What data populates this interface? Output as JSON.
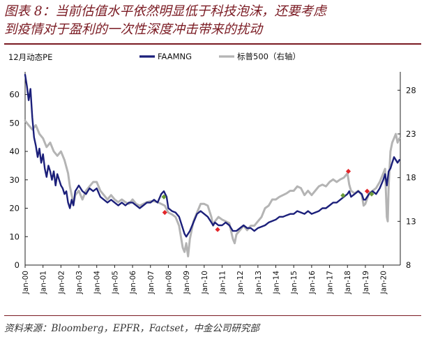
{
  "figure": {
    "title_line1": "图表 8：当前估值水平依然明显低于科技泡沫，还要考虑",
    "title_line2": "到疫情对于盈利的一次性深度冲击带来的扰动",
    "source": "资料来源：Bloomberg，EPFR，Factset，中金公司研究部"
  },
  "chart_data": {
    "type": "line",
    "y_unit_label": "12月动态PE",
    "left_axis": {
      "ylim": [
        0,
        68
      ],
      "ticks": [
        0,
        10,
        20,
        30,
        40,
        50,
        60
      ]
    },
    "right_axis": {
      "ylim": [
        8,
        30.1
      ],
      "ticks": [
        8,
        13,
        18,
        23,
        28
      ]
    },
    "x_axis": {
      "xlim": [
        2000.0,
        2020.95
      ],
      "ticks": [
        "Jan-00",
        "Jan-01",
        "Jan-02",
        "Jan-03",
        "Jan-04",
        "Jan-05",
        "Jan-06",
        "Jan-07",
        "Jan-08",
        "Jan-09",
        "Jan-10",
        "Jan-11",
        "Jan-12",
        "Jan-13",
        "Jan-14",
        "Jan-15",
        "Jan-16",
        "Jan-17",
        "Jan-18",
        "Jan-19",
        "Jan-20"
      ]
    },
    "legend": {
      "placement": "top-center"
    },
    "grid": false,
    "series": [
      {
        "name": "FAAMNG",
        "axis": "left",
        "color": "#1b1f7a",
        "points": [
          [
            2000.0,
            67
          ],
          [
            2000.1,
            63
          ],
          [
            2000.2,
            58
          ],
          [
            2000.3,
            62
          ],
          [
            2000.4,
            52
          ],
          [
            2000.5,
            45
          ],
          [
            2000.6,
            42
          ],
          [
            2000.7,
            38
          ],
          [
            2000.8,
            41
          ],
          [
            2000.9,
            36
          ],
          [
            2001.0,
            39
          ],
          [
            2001.1,
            34
          ],
          [
            2001.2,
            31
          ],
          [
            2001.3,
            35
          ],
          [
            2001.4,
            33
          ],
          [
            2001.5,
            30
          ],
          [
            2001.6,
            33
          ],
          [
            2001.7,
            28
          ],
          [
            2001.8,
            32
          ],
          [
            2001.9,
            30
          ],
          [
            2002.0,
            28
          ],
          [
            2002.1,
            27
          ],
          [
            2002.2,
            25
          ],
          [
            2002.3,
            26
          ],
          [
            2002.4,
            22
          ],
          [
            2002.5,
            20
          ],
          [
            2002.6,
            23
          ],
          [
            2002.7,
            21
          ],
          [
            2002.8,
            26
          ],
          [
            2002.9,
            27
          ],
          [
            2003.0,
            28
          ],
          [
            2003.2,
            26
          ],
          [
            2003.4,
            25
          ],
          [
            2003.6,
            27
          ],
          [
            2003.8,
            26
          ],
          [
            2004.0,
            27
          ],
          [
            2004.2,
            24
          ],
          [
            2004.4,
            23
          ],
          [
            2004.6,
            22
          ],
          [
            2004.8,
            23
          ],
          [
            2005.0,
            22
          ],
          [
            2005.2,
            21
          ],
          [
            2005.4,
            22
          ],
          [
            2005.6,
            21
          ],
          [
            2005.8,
            22
          ],
          [
            2006.0,
            22
          ],
          [
            2006.2,
            21
          ],
          [
            2006.4,
            20
          ],
          [
            2006.6,
            21
          ],
          [
            2006.8,
            22
          ],
          [
            2007.0,
            22
          ],
          [
            2007.2,
            23
          ],
          [
            2007.4,
            22
          ],
          [
            2007.6,
            25
          ],
          [
            2007.75,
            26
          ],
          [
            2007.9,
            24
          ],
          [
            2008.0,
            20
          ],
          [
            2008.2,
            19
          ],
          [
            2008.4,
            18.5
          ],
          [
            2008.6,
            17
          ],
          [
            2008.8,
            13
          ],
          [
            2008.9,
            11
          ],
          [
            2009.0,
            10
          ],
          [
            2009.2,
            12
          ],
          [
            2009.4,
            15
          ],
          [
            2009.6,
            18
          ],
          [
            2009.8,
            19
          ],
          [
            2010.0,
            18
          ],
          [
            2010.2,
            17
          ],
          [
            2010.4,
            15
          ],
          [
            2010.5,
            14
          ],
          [
            2010.6,
            15
          ],
          [
            2010.8,
            14
          ],
          [
            2011.0,
            14
          ],
          [
            2011.2,
            15
          ],
          [
            2011.4,
            14
          ],
          [
            2011.6,
            12
          ],
          [
            2011.8,
            12
          ],
          [
            2012.0,
            13
          ],
          [
            2012.2,
            14
          ],
          [
            2012.4,
            13
          ],
          [
            2012.6,
            13
          ],
          [
            2012.8,
            12
          ],
          [
            2013.0,
            13
          ],
          [
            2013.2,
            13.5
          ],
          [
            2013.4,
            14
          ],
          [
            2013.6,
            15
          ],
          [
            2013.8,
            15.5
          ],
          [
            2014.0,
            16
          ],
          [
            2014.2,
            17
          ],
          [
            2014.4,
            17
          ],
          [
            2014.6,
            17.5
          ],
          [
            2014.8,
            18
          ],
          [
            2015.0,
            18
          ],
          [
            2015.2,
            19
          ],
          [
            2015.4,
            18.5
          ],
          [
            2015.6,
            18
          ],
          [
            2015.8,
            19
          ],
          [
            2016.0,
            18
          ],
          [
            2016.2,
            18.5
          ],
          [
            2016.4,
            19
          ],
          [
            2016.6,
            20
          ],
          [
            2016.8,
            20
          ],
          [
            2017.0,
            21
          ],
          [
            2017.2,
            22
          ],
          [
            2017.4,
            22
          ],
          [
            2017.6,
            23
          ],
          [
            2017.8,
            24
          ],
          [
            2018.0,
            25
          ],
          [
            2018.1,
            26
          ],
          [
            2018.2,
            24
          ],
          [
            2018.4,
            25
          ],
          [
            2018.6,
            26
          ],
          [
            2018.8,
            25
          ],
          [
            2018.9,
            23
          ],
          [
            2019.0,
            23
          ],
          [
            2019.2,
            25
          ],
          [
            2019.4,
            26
          ],
          [
            2019.6,
            25
          ],
          [
            2019.8,
            27
          ],
          [
            2020.0,
            30
          ],
          [
            2020.1,
            32
          ],
          [
            2020.2,
            28
          ],
          [
            2020.3,
            33
          ],
          [
            2020.4,
            34
          ],
          [
            2020.5,
            36
          ],
          [
            2020.6,
            38
          ],
          [
            2020.7,
            37
          ],
          [
            2020.8,
            36
          ],
          [
            2020.9,
            37
          ]
        ]
      },
      {
        "name": "标普500（右轴）",
        "axis": "right",
        "color": "#b4b4b4",
        "points": [
          [
            2000.0,
            24.5
          ],
          [
            2000.2,
            24
          ],
          [
            2000.4,
            23.5
          ],
          [
            2000.6,
            24
          ],
          [
            2000.8,
            23
          ],
          [
            2001.0,
            22.5
          ],
          [
            2001.2,
            21.5
          ],
          [
            2001.4,
            22
          ],
          [
            2001.6,
            21
          ],
          [
            2001.8,
            20.5
          ],
          [
            2002.0,
            21
          ],
          [
            2002.2,
            20
          ],
          [
            2002.4,
            18.5
          ],
          [
            2002.5,
            17
          ],
          [
            2002.6,
            16
          ],
          [
            2002.7,
            15
          ],
          [
            2002.8,
            16
          ],
          [
            2003.0,
            16.5
          ],
          [
            2003.2,
            15.5
          ],
          [
            2003.4,
            16.5
          ],
          [
            2003.6,
            17
          ],
          [
            2003.8,
            17.5
          ],
          [
            2004.0,
            17.5
          ],
          [
            2004.2,
            16.5
          ],
          [
            2004.4,
            16
          ],
          [
            2004.6,
            15.5
          ],
          [
            2004.8,
            16
          ],
          [
            2005.0,
            15.5
          ],
          [
            2005.2,
            15.2
          ],
          [
            2005.4,
            15.5
          ],
          [
            2005.6,
            15.2
          ],
          [
            2005.8,
            15
          ],
          [
            2006.0,
            15.5
          ],
          [
            2006.2,
            15
          ],
          [
            2006.4,
            14.8
          ],
          [
            2006.6,
            15
          ],
          [
            2006.8,
            15.2
          ],
          [
            2007.0,
            15.3
          ],
          [
            2007.2,
            15.3
          ],
          [
            2007.4,
            15.2
          ],
          [
            2007.6,
            15
          ],
          [
            2007.8,
            14.8
          ],
          [
            2008.0,
            14
          ],
          [
            2008.2,
            13.8
          ],
          [
            2008.4,
            13.5
          ],
          [
            2008.6,
            12.5
          ],
          [
            2008.8,
            10
          ],
          [
            2008.9,
            9.5
          ],
          [
            2009.0,
            10.5
          ],
          [
            2009.1,
            9
          ],
          [
            2009.2,
            11
          ],
          [
            2009.4,
            13
          ],
          [
            2009.6,
            14
          ],
          [
            2009.8,
            15
          ],
          [
            2010.0,
            15
          ],
          [
            2010.2,
            14.8
          ],
          [
            2010.4,
            13.5
          ],
          [
            2010.5,
            12.5
          ],
          [
            2010.6,
            13
          ],
          [
            2010.8,
            13.5
          ],
          [
            2011.0,
            13.2
          ],
          [
            2011.2,
            13
          ],
          [
            2011.4,
            12.8
          ],
          [
            2011.6,
            11
          ],
          [
            2011.7,
            10.5
          ],
          [
            2011.8,
            11.5
          ],
          [
            2012.0,
            12
          ],
          [
            2012.2,
            12.5
          ],
          [
            2012.4,
            12
          ],
          [
            2012.6,
            12.5
          ],
          [
            2012.8,
            12.5
          ],
          [
            2013.0,
            13
          ],
          [
            2013.2,
            13.5
          ],
          [
            2013.4,
            14.5
          ],
          [
            2013.6,
            14.8
          ],
          [
            2013.8,
            15.5
          ],
          [
            2014.0,
            15.5
          ],
          [
            2014.2,
            15.8
          ],
          [
            2014.4,
            16
          ],
          [
            2014.6,
            16.2
          ],
          [
            2014.8,
            16.5
          ],
          [
            2015.0,
            16.5
          ],
          [
            2015.2,
            17
          ],
          [
            2015.4,
            16.8
          ],
          [
            2015.6,
            16
          ],
          [
            2015.8,
            16.5
          ],
          [
            2016.0,
            16
          ],
          [
            2016.2,
            16.5
          ],
          [
            2016.4,
            17
          ],
          [
            2016.6,
            17.2
          ],
          [
            2016.8,
            17
          ],
          [
            2017.0,
            17.5
          ],
          [
            2017.2,
            17.8
          ],
          [
            2017.4,
            17.5
          ],
          [
            2017.6,
            17.8
          ],
          [
            2017.8,
            18
          ],
          [
            2018.0,
            18.5
          ],
          [
            2018.1,
            17.2
          ],
          [
            2018.2,
            16.5
          ],
          [
            2018.4,
            16.2
          ],
          [
            2018.6,
            16.5
          ],
          [
            2018.8,
            16
          ],
          [
            2018.9,
            14.8
          ],
          [
            2019.0,
            15
          ],
          [
            2019.2,
            16.2
          ],
          [
            2019.4,
            16.5
          ],
          [
            2019.6,
            16.8
          ],
          [
            2019.8,
            17.5
          ],
          [
            2020.0,
            18.5
          ],
          [
            2020.1,
            19
          ],
          [
            2020.2,
            13.5
          ],
          [
            2020.25,
            13
          ],
          [
            2020.3,
            17
          ],
          [
            2020.4,
            21
          ],
          [
            2020.5,
            22
          ],
          [
            2020.6,
            22.5
          ],
          [
            2020.7,
            23
          ],
          [
            2020.8,
            22
          ],
          [
            2020.9,
            22.5
          ]
        ]
      }
    ],
    "markers": [
      {
        "x": 2007.75,
        "y": 24,
        "axis": "left",
        "color": "#6b9a3a"
      },
      {
        "x": 2007.8,
        "y": 18.5,
        "axis": "left",
        "color": "#e3262a"
      },
      {
        "x": 2010.75,
        "y": 12.5,
        "axis": "left",
        "color": "#e3262a"
      },
      {
        "x": 2017.75,
        "y": 24.5,
        "axis": "left",
        "color": "#6b9a3a"
      },
      {
        "x": 2018.05,
        "y": 33,
        "axis": "left",
        "color": "#e3262a"
      },
      {
        "x": 2019.1,
        "y": 26,
        "axis": "left",
        "color": "#e3262a"
      },
      {
        "x": 2019.35,
        "y": 25,
        "axis": "left",
        "color": "#6b9a3a"
      }
    ]
  }
}
